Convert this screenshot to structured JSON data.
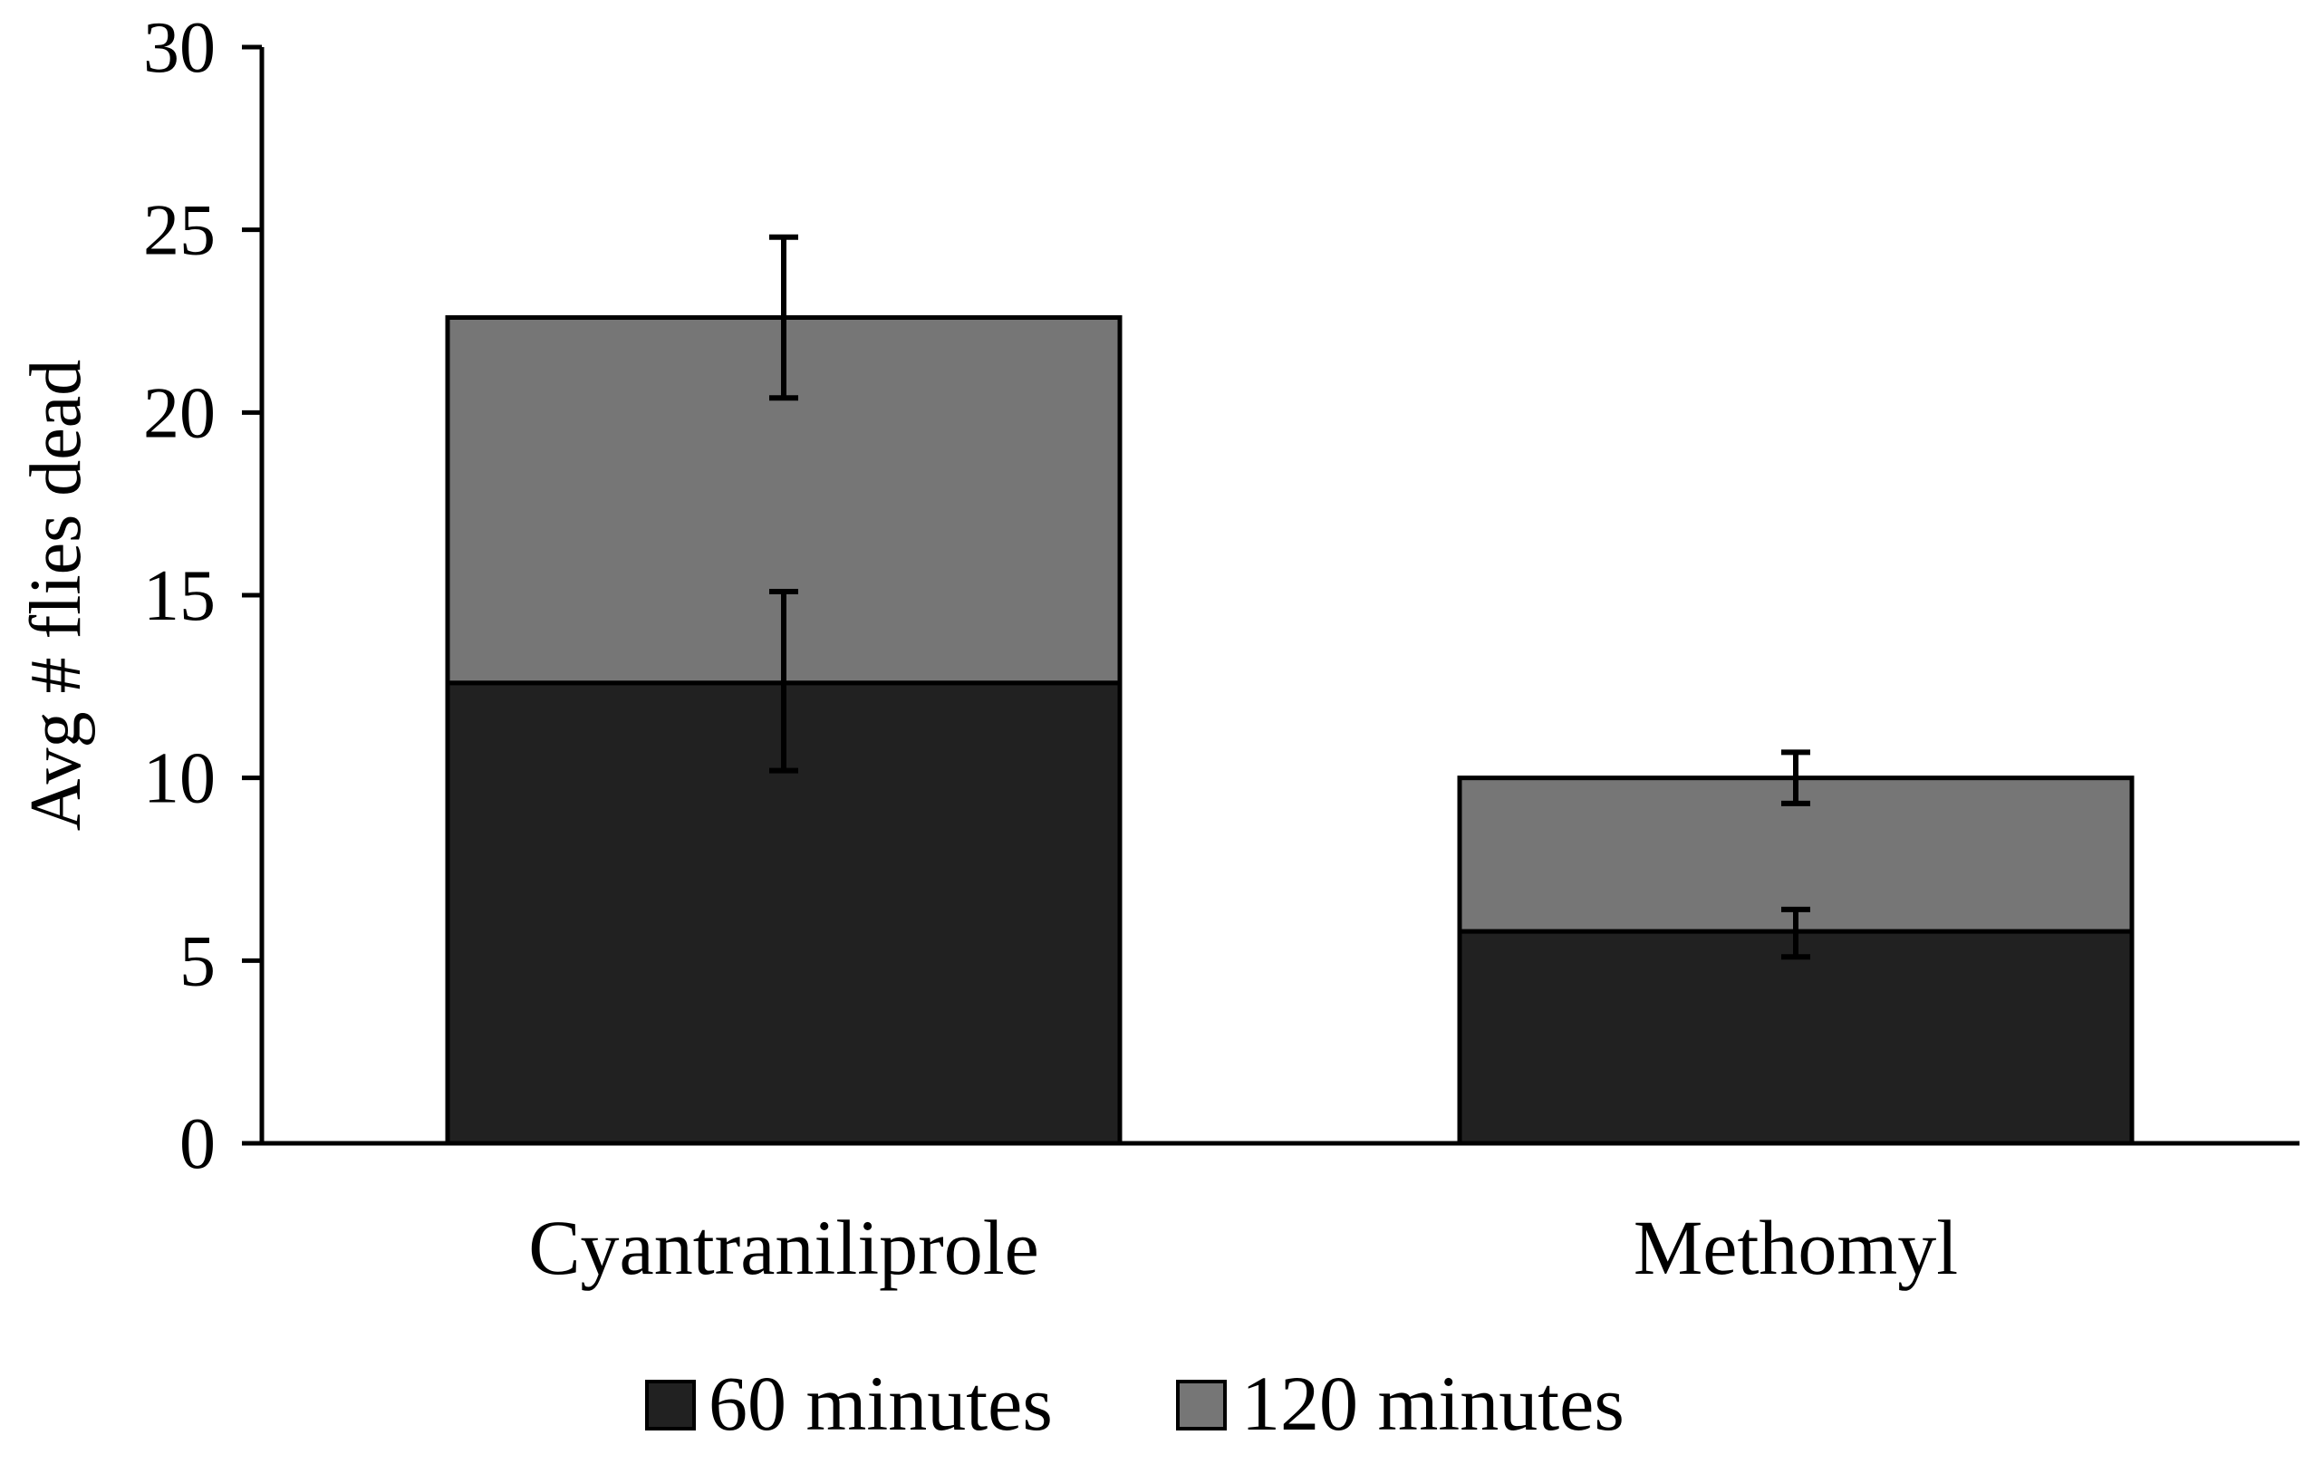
{
  "chart_data": {
    "type": "bar",
    "stacked": true,
    "categories": [
      "Cyantraniliprole",
      "Methomyl"
    ],
    "series": [
      {
        "name": "60 minutes",
        "color": "#212121",
        "values": [
          12.6,
          5.8
        ],
        "error_bars": [
          [
            10.2,
            15.1
          ],
          [
            5.1,
            6.4
          ]
        ]
      },
      {
        "name": "120 minutes",
        "color": "#767676",
        "values": [
          10.0,
          4.2
        ],
        "error_bars": [
          [
            20.4,
            24.8
          ],
          [
            9.3,
            10.7
          ]
        ]
      }
    ],
    "ylabel": "Avg # flies dead",
    "xlabel": "",
    "title": "",
    "ylim": [
      0,
      30
    ],
    "yticks": [
      0,
      5,
      10,
      15,
      20,
      25,
      30
    ],
    "grid": false,
    "legend_position": "bottom"
  }
}
